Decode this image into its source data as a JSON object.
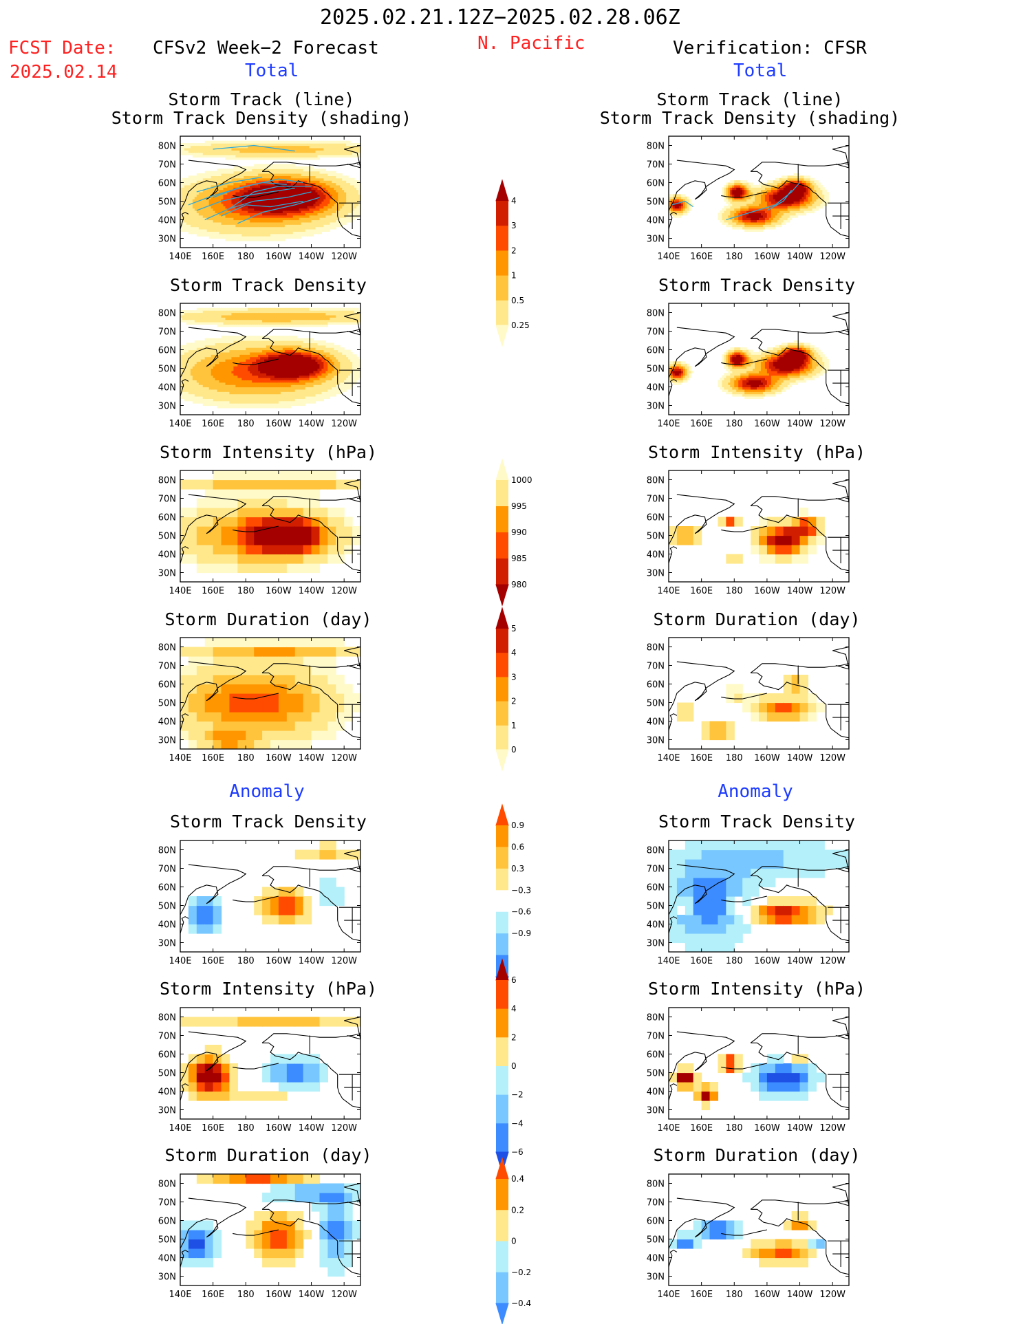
{
  "header": {
    "date_range": "2025.02.21.12Z−2025.02.28.06Z",
    "region": "N. Pacific",
    "fcst_label": "FCST Date:",
    "fcst_date": "2025.02.14",
    "left_title": "CFSv2 Week−2 Forecast",
    "right_title": "Verification: CFSR",
    "total_label": "Total",
    "anomaly_label": "Anomaly"
  },
  "panel_titles": {
    "track_line": "Storm Track (line)",
    "track_shade": "Storm Track Density (shading)",
    "density": "Storm Track Density",
    "intensity": "Storm Intensity (hPa)",
    "duration": "Storm Duration (day)"
  },
  "axes": {
    "x_ticks": [
      "140E",
      "160E",
      "180",
      "160W",
      "140W",
      "120W"
    ],
    "y_ticks": [
      "80N",
      "70N",
      "60N",
      "50N",
      "40N",
      "30N"
    ],
    "lon_range": [
      140,
      250
    ],
    "lat_range": [
      25,
      85
    ]
  },
  "colorbars": [
    {
      "id": "density",
      "labels": [
        "4",
        "3",
        "2",
        "1",
        "0.5",
        "0.25"
      ],
      "colors": [
        "#a50000",
        "#d21e00",
        "#ff4b00",
        "#ff9600",
        "#ffc43c",
        "#ffe88c",
        "#fffac8"
      ]
    },
    {
      "id": "intensity",
      "labels": [
        "1000",
        "995",
        "990",
        "985",
        "980"
      ],
      "colors": [
        "#fffac8",
        "#ffe88c",
        "#ff9600",
        "#ff4b00",
        "#d21e00",
        "#a50000"
      ]
    },
    {
      "id": "duration",
      "labels": [
        "5",
        "4",
        "3",
        "2",
        "1",
        "0"
      ],
      "colors": [
        "#a50000",
        "#d21e00",
        "#ff4b00",
        "#ff9600",
        "#ffc43c",
        "#ffe88c",
        "#fffac8"
      ]
    },
    {
      "id": "anom_density",
      "labels": [
        "0.9",
        "0.6",
        "0.3",
        "−0.3",
        "−0.6",
        "−0.9"
      ],
      "colors": [
        "#ff4b00",
        "#ff9600",
        "#ffc43c",
        "#ffe88c",
        "#ffffff",
        "#b4f0fa",
        "#78c8ff",
        "#3c8cff",
        "#1e50e6"
      ]
    },
    {
      "id": "anom_intensity",
      "labels": [
        "6",
        "4",
        "2",
        "0",
        "−2",
        "−4",
        "−6"
      ],
      "colors": [
        "#a50000",
        "#ff4b00",
        "#ff9600",
        "#ffe88c",
        "#b4f0fa",
        "#78c8ff",
        "#3c8cff",
        "#1e50e6"
      ]
    },
    {
      "id": "anom_duration",
      "labels": [
        "0.4",
        "0.2",
        "0",
        "−0.2",
        "−0.4"
      ],
      "colors": [
        "#ff4b00",
        "#ff9600",
        "#ffe88c",
        "#b4f0fa",
        "#78c8ff",
        "#3c8cff"
      ]
    }
  ],
  "chart_data": [
    {
      "type": "heatmap",
      "panel": "fcst_total_track",
      "title": "Storm Track (line) / Storm Track Density (shading)",
      "field": [
        {
          "lon": 210,
          "lat": 52,
          "peak": 4
        }
      ],
      "tracks": "overlaid cyan lines"
    },
    {
      "type": "heatmap",
      "panel": "fcst_total_density",
      "title": "Storm Track Density",
      "field": [
        {
          "lon": 210,
          "lat": 52,
          "peak": 4
        }
      ]
    },
    {
      "type": "heatmap",
      "panel": "fcst_total_intensity",
      "title": "Storm Intensity (hPa)",
      "field": [
        {
          "lon": 205,
          "lat": 52,
          "min": 980
        }
      ]
    },
    {
      "type": "heatmap",
      "panel": "fcst_total_duration",
      "title": "Storm Duration (day)",
      "field": [
        {
          "lon": 180,
          "lat": 50,
          "max": 3
        }
      ]
    },
    {
      "type": "heatmap",
      "panel": "cfsr_total_track",
      "title": "Storm Track (line) / Storm Track Density (shading)",
      "field": [
        {
          "lon": 210,
          "lat": 50,
          "peak": 4
        },
        {
          "lon": 182,
          "lat": 55,
          "peak": 4
        }
      ]
    },
    {
      "type": "heatmap",
      "panel": "cfsr_total_density",
      "title": "Storm Track Density",
      "field": [
        {
          "lon": 210,
          "lat": 50,
          "peak": 4
        }
      ]
    },
    {
      "type": "heatmap",
      "panel": "cfsr_total_intensity",
      "title": "Storm Intensity (hPa)",
      "field": [
        {
          "lon": 210,
          "lat": 50,
          "min": 980
        }
      ]
    },
    {
      "type": "heatmap",
      "panel": "cfsr_total_duration",
      "title": "Storm Duration (day)",
      "field": [
        {
          "lon": 215,
          "lat": 55,
          "max": 4
        }
      ]
    },
    {
      "type": "heatmap",
      "panel": "fcst_anom_density",
      "title": "Storm Track Density",
      "field": [
        {
          "lon": 205,
          "lat": 52,
          "value": 0.9
        },
        {
          "lon": 155,
          "lat": 45,
          "value": -0.9
        }
      ]
    },
    {
      "type": "heatmap",
      "panel": "fcst_anom_intensity",
      "title": "Storm Intensity (hPa)",
      "field": [
        {
          "lon": 160,
          "lat": 48,
          "value": 6
        },
        {
          "lon": 210,
          "lat": 50,
          "value": -4
        }
      ]
    },
    {
      "type": "heatmap",
      "panel": "fcst_anom_duration",
      "title": "Storm Duration (day)",
      "field": [
        {
          "lon": 200,
          "lat": 52,
          "value": 0.4
        },
        {
          "lon": 150,
          "lat": 45,
          "value": -0.4
        }
      ]
    },
    {
      "type": "heatmap",
      "panel": "cfsr_anom_density",
      "title": "Storm Track Density",
      "field": [
        {
          "lon": 210,
          "lat": 48,
          "value": 0.9
        },
        {
          "lon": 160,
          "lat": 55,
          "value": -0.9
        }
      ]
    },
    {
      "type": "heatmap",
      "panel": "cfsr_anom_intensity",
      "title": "Storm Intensity (hPa)",
      "field": [
        {
          "lon": 160,
          "lat": 45,
          "value": 6
        },
        {
          "lon": 210,
          "lat": 48,
          "value": -6
        }
      ]
    },
    {
      "type": "heatmap",
      "panel": "cfsr_anom_duration",
      "title": "Storm Duration (day)",
      "field": [
        {
          "lon": 220,
          "lat": 50,
          "value": 0.4
        },
        {
          "lon": 170,
          "lat": 52,
          "value": -0.4
        }
      ]
    }
  ]
}
